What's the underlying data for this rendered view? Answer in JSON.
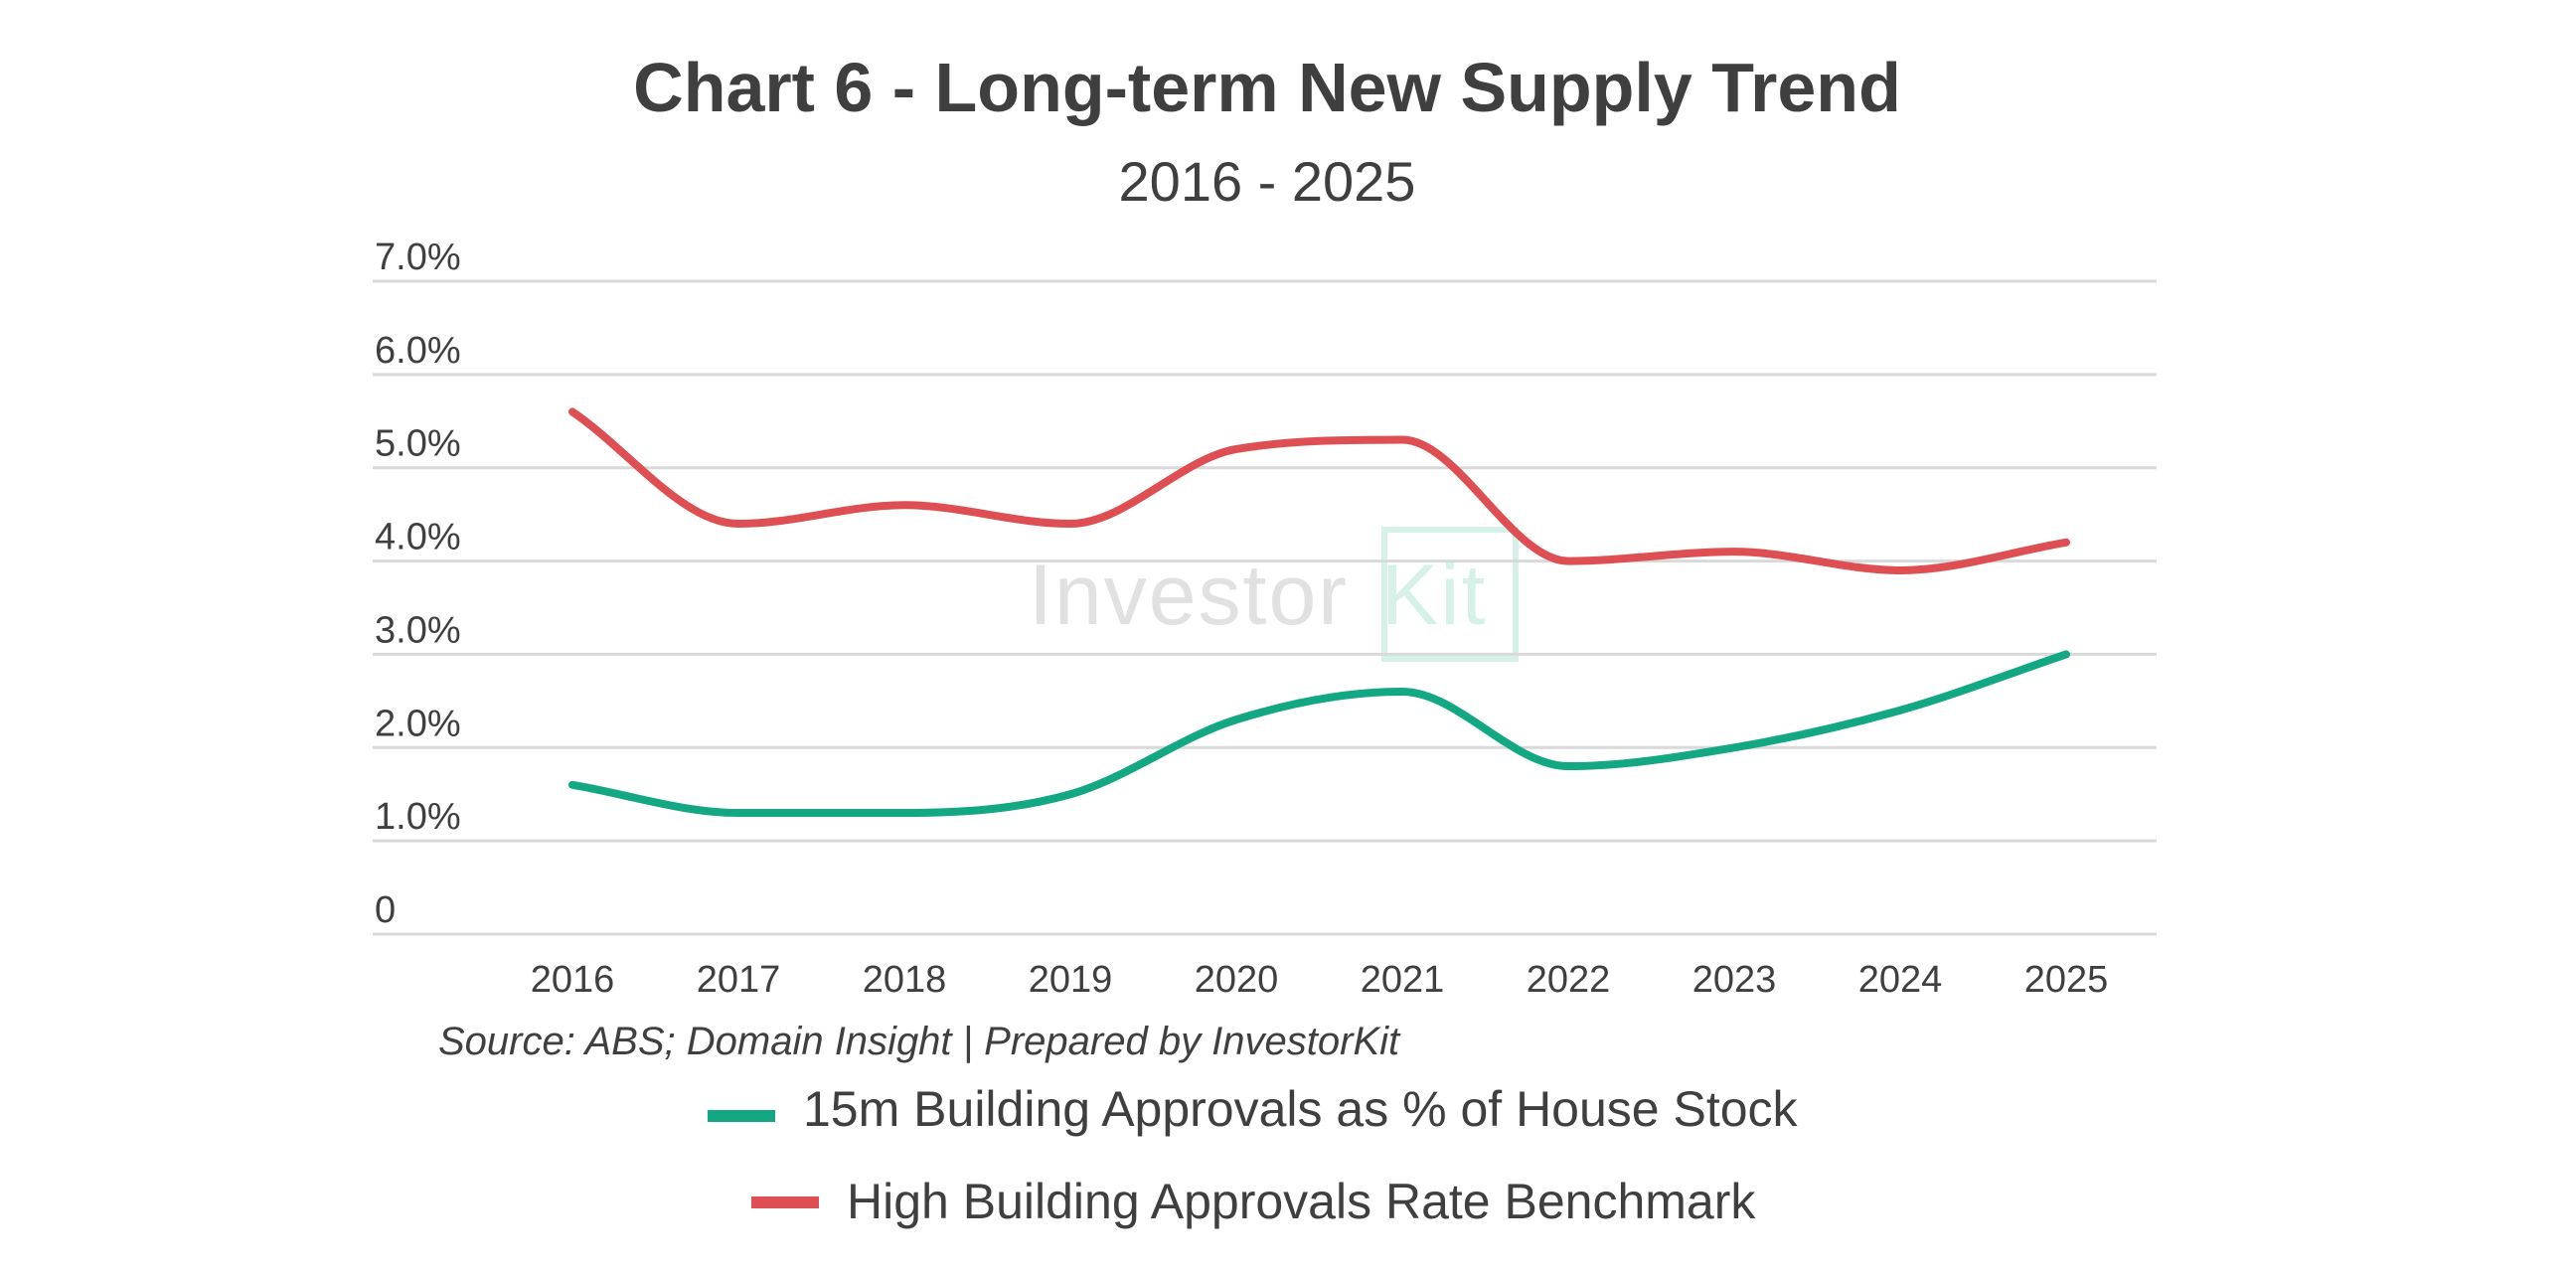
{
  "colors": {
    "green_series": "#13a883",
    "red_series": "#de4f53",
    "text": "#3f3f3f",
    "grid": "#d9d9d9",
    "watermark_grey": "#e1e1e1",
    "watermark_green": "#d6f2e8"
  },
  "watermark": {
    "word1": "Investor",
    "word2": "Kit"
  },
  "source_note": "Source: ABS; Domain Insight | Prepared by InvestorKit",
  "chart_data": {
    "type": "line",
    "title": "Chart 6 - Long-term New Supply Trend",
    "subtitle": "2016 - 2025",
    "xlabel": "",
    "ylabel": "",
    "categories": [
      "2016",
      "2017",
      "2018",
      "2019",
      "2020",
      "2021",
      "2022",
      "2023",
      "2024",
      "2025"
    ],
    "ylim": [
      0,
      7
    ],
    "yticks": [
      {
        "value": 0,
        "label": "0"
      },
      {
        "value": 1,
        "label": "1.0%"
      },
      {
        "value": 2,
        "label": "2.0%"
      },
      {
        "value": 3,
        "label": "3.0%"
      },
      {
        "value": 4,
        "label": "4.0%"
      },
      {
        "value": 5,
        "label": "5.0%"
      },
      {
        "value": 6,
        "label": "6.0%"
      },
      {
        "value": 7,
        "label": "7.0%"
      }
    ],
    "grid": true,
    "legend_position": "bottom",
    "smooth": true,
    "series": [
      {
        "name": "15m Building Approvals as % of House Stock",
        "color": "#13a883",
        "values": [
          1.6,
          1.3,
          1.3,
          1.5,
          2.3,
          2.6,
          1.8,
          2.0,
          2.4,
          3.0
        ]
      },
      {
        "name": "High Building Approvals Rate Benchmark",
        "color": "#de4f53",
        "values": [
          5.6,
          4.4,
          4.6,
          4.4,
          5.2,
          5.3,
          4.0,
          4.1,
          3.9,
          4.2
        ]
      }
    ]
  }
}
